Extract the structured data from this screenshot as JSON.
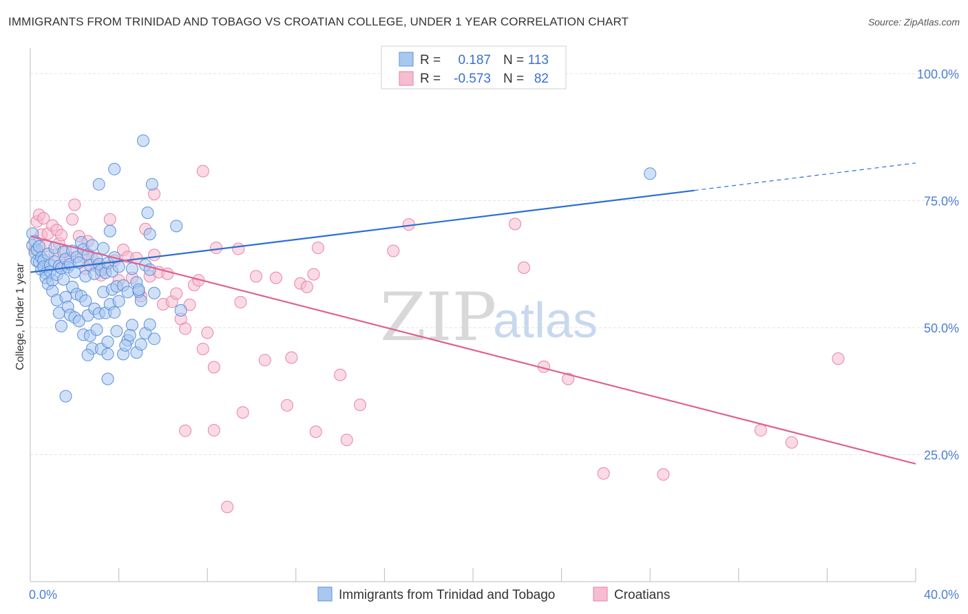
{
  "header": {
    "title": "IMMIGRANTS FROM TRINIDAD AND TOBAGO VS CROATIAN COLLEGE, UNDER 1 YEAR CORRELATION CHART",
    "source": "Source: ZipAtlas.com"
  },
  "legend": {
    "series1": {
      "r_label": "R =",
      "r_value": "0.187",
      "n_label": "N =",
      "n_value": "113"
    },
    "series2": {
      "r_label": "R =",
      "r_value": "-0.573",
      "n_label": "N =",
      "n_value": "82"
    }
  },
  "watermark": {
    "zip": "ZIP",
    "atlas": "atlas"
  },
  "colors": {
    "blue_fill": "#a9c8f0",
    "blue_stroke": "#5b8fdb",
    "blue_line": "#2b6fd0",
    "pink_fill": "#f6bcd0",
    "pink_stroke": "#e882a6",
    "pink_line": "#e0608f",
    "grid": "#e2e2e2",
    "tick_text": "#4a7fd4"
  },
  "chart_data": {
    "type": "scatter",
    "title": "IMMIGRANTS FROM TRINIDAD AND TOBAGO VS CROATIAN COLLEGE, UNDER 1 YEAR CORRELATION CHART",
    "xlabel": "",
    "ylabel": "College, Under 1 year",
    "xlim": [
      0,
      40
    ],
    "ylim": [
      0,
      105
    ],
    "x_tick_labels": [
      {
        "value": 0,
        "label": "0.0%"
      },
      {
        "value": 40,
        "label": "40.0%"
      }
    ],
    "y_tick_labels": [
      {
        "value": 25,
        "label": "25.0%"
      },
      {
        "value": 50,
        "label": "50.0%"
      },
      {
        "value": 75,
        "label": "75.0%"
      },
      {
        "value": 100,
        "label": "100.0%"
      }
    ],
    "grid": true,
    "legend_position": "top-center",
    "series": [
      {
        "name": "Immigrants from Trinidad and Tobago",
        "color": "#a9c8f0",
        "R": 0.187,
        "N": 113,
        "trend": {
          "x0": 0,
          "y0": 60.9,
          "x1": 30,
          "y1": 77.0,
          "dashed_to_x": 40,
          "dashed_to_y": 82.4
        },
        "points": [
          [
            0.1,
            68.5
          ],
          [
            0.1,
            66.2
          ],
          [
            0.2,
            67.0
          ],
          [
            0.2,
            64.8
          ],
          [
            0.3,
            65.3
          ],
          [
            0.3,
            63.1
          ],
          [
            0.4,
            62.9
          ],
          [
            0.4,
            66.0
          ],
          [
            0.5,
            63.8
          ],
          [
            0.5,
            61.4
          ],
          [
            0.6,
            63.2
          ],
          [
            0.6,
            62.0
          ],
          [
            0.7,
            60.7
          ],
          [
            0.7,
            59.8
          ],
          [
            0.8,
            64.5
          ],
          [
            0.8,
            58.6
          ],
          [
            0.9,
            62.3
          ],
          [
            0.9,
            61.0
          ],
          [
            1.0,
            59.3
          ],
          [
            1.0,
            57.2
          ],
          [
            1.1,
            65.7
          ],
          [
            1.1,
            63.0
          ],
          [
            1.2,
            60.4
          ],
          [
            1.2,
            55.4
          ],
          [
            1.3,
            62.1
          ],
          [
            1.3,
            52.9
          ],
          [
            1.4,
            61.7
          ],
          [
            1.4,
            50.3
          ],
          [
            1.5,
            64.9
          ],
          [
            1.5,
            59.5
          ],
          [
            1.6,
            63.5
          ],
          [
            1.6,
            56.0
          ],
          [
            1.7,
            61.9
          ],
          [
            1.7,
            54.1
          ],
          [
            1.8,
            62.5
          ],
          [
            1.8,
            52.5
          ],
          [
            1.9,
            65.1
          ],
          [
            1.9,
            58.0
          ],
          [
            2.0,
            60.9
          ],
          [
            2.0,
            52.0
          ],
          [
            2.1,
            63.9
          ],
          [
            2.1,
            56.6
          ],
          [
            2.2,
            62.8
          ],
          [
            2.2,
            51.3
          ],
          [
            2.3,
            66.8
          ],
          [
            2.3,
            56.2
          ],
          [
            2.4,
            65.4
          ],
          [
            2.4,
            48.6
          ],
          [
            2.5,
            60.1
          ],
          [
            2.5,
            55.3
          ],
          [
            2.6,
            64.4
          ],
          [
            2.6,
            52.4
          ],
          [
            2.7,
            62.3
          ],
          [
            2.7,
            48.4
          ],
          [
            2.8,
            66.2
          ],
          [
            2.8,
            45.9
          ],
          [
            2.9,
            60.6
          ],
          [
            2.9,
            53.7
          ],
          [
            3.0,
            63.6
          ],
          [
            3.0,
            49.6
          ],
          [
            3.1,
            62.5
          ],
          [
            3.1,
            52.8
          ],
          [
            3.2,
            61.3
          ],
          [
            3.2,
            45.8
          ],
          [
            3.3,
            65.6
          ],
          [
            3.3,
            57.0
          ],
          [
            3.4,
            60.8
          ],
          [
            3.4,
            52.9
          ],
          [
            3.5,
            62.7
          ],
          [
            3.5,
            47.2
          ],
          [
            3.6,
            69.0
          ],
          [
            3.6,
            54.6
          ],
          [
            3.7,
            61.1
          ],
          [
            3.7,
            57.5
          ],
          [
            3.8,
            63.8
          ],
          [
            3.8,
            53.0
          ],
          [
            3.9,
            58.1
          ],
          [
            3.9,
            49.3
          ],
          [
            4.0,
            62.0
          ],
          [
            4.0,
            55.2
          ],
          [
            4.2,
            58.3
          ],
          [
            4.2,
            44.8
          ],
          [
            4.4,
            57.0
          ],
          [
            4.4,
            47.5
          ],
          [
            4.6,
            61.6
          ],
          [
            4.6,
            50.5
          ],
          [
            4.8,
            58.9
          ],
          [
            4.8,
            45.1
          ],
          [
            5.0,
            55.3
          ],
          [
            5.0,
            46.7
          ],
          [
            5.2,
            62.3
          ],
          [
            5.2,
            48.9
          ],
          [
            5.4,
            61.4
          ],
          [
            5.4,
            50.6
          ],
          [
            5.6,
            56.8
          ],
          [
            5.6,
            47.8
          ],
          [
            1.6,
            36.5
          ],
          [
            2.6,
            44.6
          ],
          [
            3.5,
            44.8
          ],
          [
            3.5,
            39.9
          ],
          [
            4.3,
            46.5
          ],
          [
            4.5,
            48.5
          ],
          [
            4.9,
            57.1
          ],
          [
            4.9,
            57.5
          ],
          [
            5.1,
            86.8
          ],
          [
            3.8,
            81.2
          ],
          [
            3.1,
            78.2
          ],
          [
            5.5,
            78.2
          ],
          [
            5.3,
            72.6
          ],
          [
            5.4,
            68.4
          ],
          [
            6.6,
            70.0
          ],
          [
            6.8,
            53.4
          ],
          [
            28.0,
            80.3
          ]
        ]
      },
      {
        "name": "Croatians",
        "color": "#f6bcd0",
        "R": -0.573,
        "N": 82,
        "trend": {
          "x0": 0,
          "y0": 68.0,
          "x1": 40,
          "y1": 23.2
        },
        "points": [
          [
            0.2,
            65.4
          ],
          [
            0.3,
            70.9
          ],
          [
            0.4,
            72.2
          ],
          [
            0.5,
            68.3
          ],
          [
            0.6,
            71.5
          ],
          [
            0.7,
            66.1
          ],
          [
            0.8,
            68.5
          ],
          [
            1.0,
            70.1
          ],
          [
            1.1,
            64.3
          ],
          [
            1.2,
            69.2
          ],
          [
            1.3,
            66.6
          ],
          [
            1.4,
            68.2
          ],
          [
            1.5,
            62.3
          ],
          [
            1.6,
            65.1
          ],
          [
            1.8,
            63.7
          ],
          [
            1.9,
            71.3
          ],
          [
            2.0,
            74.2
          ],
          [
            2.2,
            68.0
          ],
          [
            2.4,
            64.0
          ],
          [
            2.5,
            61.6
          ],
          [
            2.6,
            67.0
          ],
          [
            2.8,
            63.6
          ],
          [
            3.0,
            62.1
          ],
          [
            3.2,
            60.3
          ],
          [
            3.4,
            61.9
          ],
          [
            3.6,
            71.3
          ],
          [
            3.8,
            63.2
          ],
          [
            4.0,
            59.3
          ],
          [
            4.2,
            65.3
          ],
          [
            4.4,
            63.9
          ],
          [
            4.6,
            59.8
          ],
          [
            4.8,
            63.7
          ],
          [
            5.0,
            56.2
          ],
          [
            5.2,
            69.4
          ],
          [
            5.4,
            60.1
          ],
          [
            5.6,
            64.3
          ],
          [
            5.8,
            60.9
          ],
          [
            6.0,
            54.6
          ],
          [
            6.2,
            60.6
          ],
          [
            6.4,
            55.1
          ],
          [
            6.6,
            56.7
          ],
          [
            6.8,
            51.7
          ],
          [
            7.0,
            49.8
          ],
          [
            7.2,
            54.5
          ],
          [
            7.4,
            58.4
          ],
          [
            7.6,
            59.3
          ],
          [
            7.8,
            45.8
          ],
          [
            8.0,
            49.0
          ],
          [
            5.6,
            76.3
          ],
          [
            7.8,
            80.8
          ],
          [
            8.4,
            65.7
          ],
          [
            9.4,
            65.5
          ],
          [
            8.3,
            42.2
          ],
          [
            7.0,
            29.7
          ],
          [
            8.3,
            29.8
          ],
          [
            8.9,
            14.7
          ],
          [
            9.6,
            33.3
          ],
          [
            9.5,
            55.0
          ],
          [
            10.2,
            60.1
          ],
          [
            10.6,
            43.6
          ],
          [
            11.1,
            59.8
          ],
          [
            11.6,
            34.7
          ],
          [
            11.8,
            44.1
          ],
          [
            12.2,
            58.7
          ],
          [
            12.8,
            60.5
          ],
          [
            12.9,
            29.5
          ],
          [
            13.0,
            65.7
          ],
          [
            14.0,
            40.7
          ],
          [
            14.3,
            27.9
          ],
          [
            14.9,
            34.8
          ],
          [
            16.4,
            65.1
          ],
          [
            17.1,
            70.3
          ],
          [
            21.9,
            70.4
          ],
          [
            22.3,
            61.8
          ],
          [
            23.2,
            42.3
          ],
          [
            24.3,
            39.9
          ],
          [
            25.9,
            21.3
          ],
          [
            28.6,
            21.1
          ],
          [
            33.0,
            29.8
          ],
          [
            34.4,
            27.4
          ],
          [
            36.5,
            43.9
          ],
          [
            12.5,
            58.0
          ]
        ]
      }
    ]
  },
  "bottom_legend": {
    "series1_label": "Immigrants from Trinidad and Tobago",
    "series2_label": "Croatians"
  }
}
